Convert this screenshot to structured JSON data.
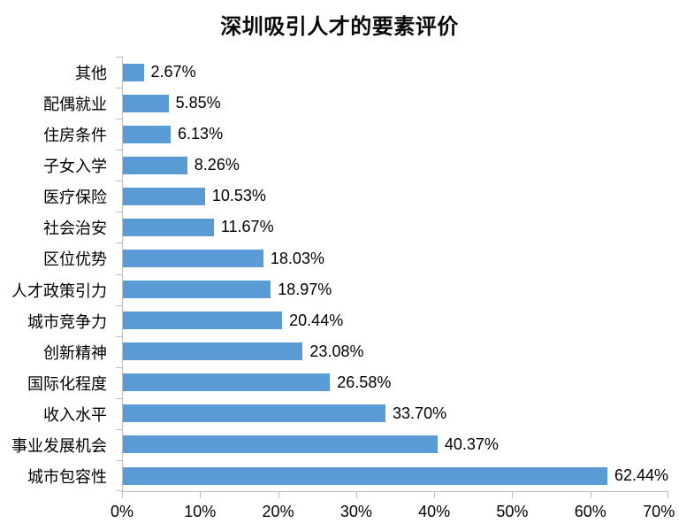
{
  "chart_data": {
    "type": "bar",
    "orientation": "horizontal",
    "title": "深圳吸引人才的要素评价",
    "categories": [
      "其他",
      "配偶就业",
      "住房条件",
      "子女入学",
      "医疗保险",
      "社会治安",
      "区位优势",
      "人才政策引力",
      "城市竞争力",
      "创新精神",
      "国际化程度",
      "收入水平",
      "事业发展机会",
      "城市包容性"
    ],
    "values": [
      2.67,
      5.85,
      6.13,
      8.26,
      10.53,
      11.67,
      18.03,
      18.97,
      20.44,
      23.08,
      26.58,
      33.7,
      40.37,
      62.44
    ],
    "value_labels": [
      "2.67%",
      "5.85%",
      "6.13%",
      "8.26%",
      "10.53%",
      "11.67%",
      "18.03%",
      "18.97%",
      "20.44%",
      "23.08%",
      "26.58%",
      "33.70%",
      "40.37%",
      "62.44%"
    ],
    "x_ticks": [
      "0%",
      "10%",
      "20%",
      "30%",
      "40%",
      "50%",
      "60%",
      "70%"
    ],
    "x_tick_values": [
      0,
      10,
      20,
      30,
      40,
      50,
      60,
      70
    ],
    "xlim": [
      0,
      70
    ],
    "xlabel": "",
    "ylabel": "",
    "grid": false,
    "legend": "none",
    "bar_color": "#5B9BD5",
    "axis_color": "#BDBDBD",
    "text_color": "#000000"
  }
}
